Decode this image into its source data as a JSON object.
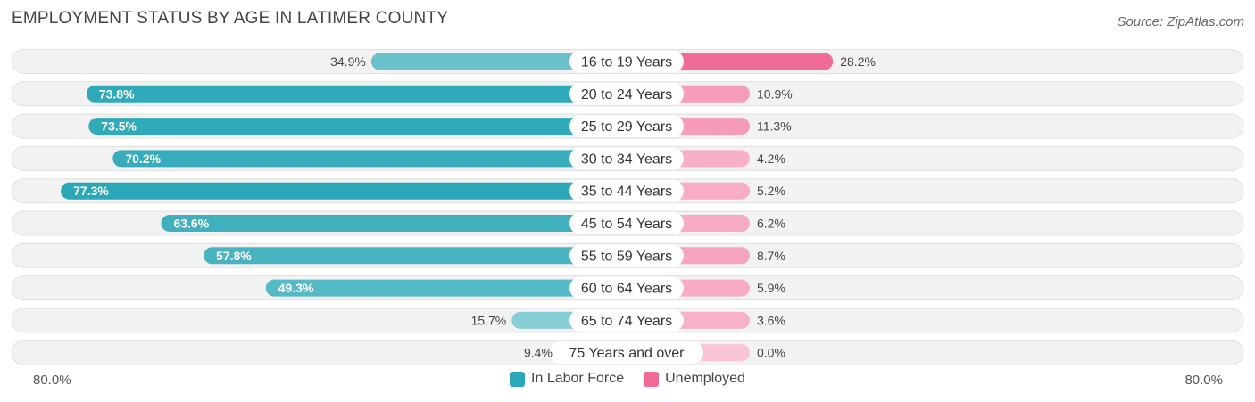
{
  "chart_data": {
    "type": "bar",
    "orientation": "horizontal-diverging",
    "title": "EMPLOYMENT STATUS BY AGE IN LATIMER COUNTY",
    "source": "Source: ZipAtlas.com",
    "categories": [
      "16 to 19 Years",
      "20 to 24 Years",
      "25 to 29 Years",
      "30 to 34 Years",
      "35 to 44 Years",
      "45 to 54 Years",
      "55 to 59 Years",
      "60 to 64 Years",
      "65 to 74 Years",
      "75 Years and over"
    ],
    "series": [
      {
        "name": "In Labor Force",
        "color": "#2ba8b8",
        "values": [
          34.9,
          73.8,
          73.5,
          70.2,
          77.3,
          63.6,
          57.8,
          49.3,
          15.7,
          9.4
        ],
        "labels": [
          "34.9%",
          "73.8%",
          "73.5%",
          "70.2%",
          "77.3%",
          "63.6%",
          "57.8%",
          "49.3%",
          "15.7%",
          "9.4%"
        ]
      },
      {
        "name": "Unemployed",
        "color": "#f06b96",
        "values": [
          28.2,
          10.9,
          11.3,
          4.2,
          5.2,
          6.2,
          8.7,
          5.9,
          3.6,
          0.0
        ],
        "labels": [
          "28.2%",
          "10.9%",
          "11.3%",
          "4.2%",
          "5.2%",
          "6.2%",
          "8.7%",
          "5.9%",
          "3.6%",
          "0.0%"
        ]
      }
    ],
    "xlim": [
      -80,
      80
    ],
    "axis_left_label": "80.0%",
    "axis_right_label": "80.0%",
    "legend_position": "bottom-center"
  }
}
